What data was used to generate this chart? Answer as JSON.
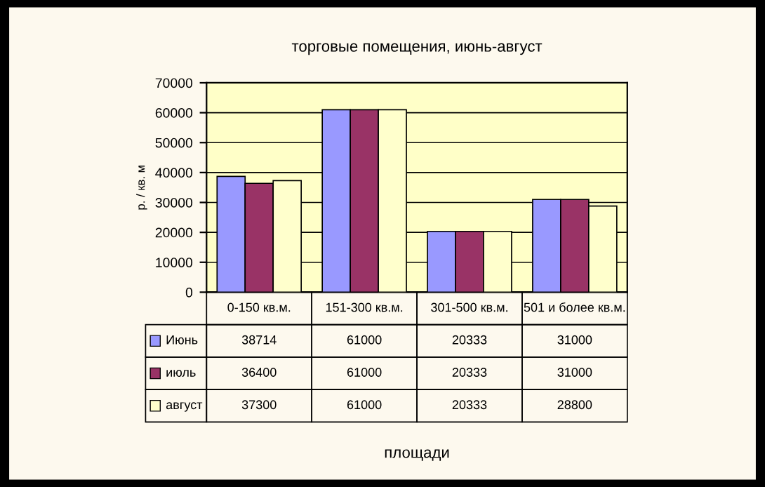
{
  "chart_data": {
    "type": "bar",
    "title": "торговые помещения, июнь-август",
    "annotations": [
      "площади"
    ],
    "ylabel": "р. / кв. м",
    "categories": [
      "0-150 кв.м.",
      "151-300 кв.м.",
      "301-500 кв.м.",
      "501 и более кв.м."
    ],
    "series": [
      {
        "name": "Июнь",
        "color": "#9999ff",
        "values": [
          38714,
          61000,
          20333,
          31000
        ]
      },
      {
        "name": "июль",
        "color": "#993366",
        "values": [
          36400,
          61000,
          20333,
          31000
        ]
      },
      {
        "name": "август",
        "color": "#ffffcc",
        "values": [
          37300,
          61000,
          20333,
          28800
        ]
      }
    ],
    "ylim": [
      0,
      70000
    ],
    "yticks": [
      0,
      10000,
      20000,
      30000,
      40000,
      50000,
      60000,
      70000
    ],
    "grid": "y",
    "legend": "bottom",
    "data_labels": true
  }
}
